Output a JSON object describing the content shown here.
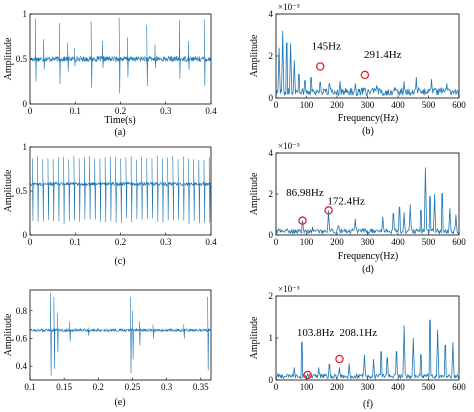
{
  "figure": {
    "panels": [
      {
        "id": "a",
        "caption": "(a)",
        "side": "time"
      },
      {
        "id": "b",
        "caption": "(b)",
        "side": "freq"
      },
      {
        "id": "c",
        "caption": "(c)",
        "side": "time"
      },
      {
        "id": "d",
        "caption": "(d)",
        "side": "freq"
      },
      {
        "id": "e",
        "caption": "(e)",
        "side": "time"
      },
      {
        "id": "f",
        "caption": "(f)",
        "side": "freq"
      }
    ]
  },
  "chart_data": [
    {
      "panel": "a",
      "type": "line",
      "color": "#1f77b4",
      "xlabel": "Time(s)",
      "ylabel": "Amplitude",
      "xlim": [
        0,
        0.4
      ],
      "ylim": [
        0,
        1
      ],
      "xticks": [
        "0",
        "0.1",
        "0.2",
        "0.3",
        "0.4"
      ],
      "xtick_values": [
        0,
        0.1,
        0.2,
        0.3,
        0.4
      ],
      "yticks": [
        "0",
        "0.5",
        "1"
      ],
      "ytick_values": [
        0,
        0.5,
        1
      ],
      "baseline": 0.5,
      "noise": 0.03,
      "spikes": [
        {
          "x": 0.012,
          "up": 0.95,
          "down": 0.25
        },
        {
          "x": 0.03,
          "up": 0.72,
          "down": 0.38
        },
        {
          "x": 0.065,
          "up": 0.9,
          "down": 0.22
        },
        {
          "x": 0.083,
          "up": 0.68,
          "down": 0.36
        },
        {
          "x": 0.098,
          "up": 0.62,
          "down": 0.42
        },
        {
          "x": 0.135,
          "up": 0.92,
          "down": 0.18
        },
        {
          "x": 0.16,
          "up": 0.7,
          "down": 0.4
        },
        {
          "x": 0.197,
          "up": 0.96,
          "down": 0.12
        },
        {
          "x": 0.215,
          "up": 0.74,
          "down": 0.3
        },
        {
          "x": 0.258,
          "up": 0.88,
          "down": 0.2
        },
        {
          "x": 0.276,
          "up": 0.66,
          "down": 0.4
        },
        {
          "x": 0.33,
          "up": 0.93,
          "down": 0.28
        },
        {
          "x": 0.35,
          "up": 0.7,
          "down": 0.38
        },
        {
          "x": 0.385,
          "up": 0.94,
          "down": 0.2
        }
      ]
    },
    {
      "panel": "b",
      "type": "line",
      "color": "#1f77b4",
      "xlabel": "Frequency(Hz)",
      "ylabel": "Amplitude",
      "scale_label": "×10⁻³",
      "xlim": [
        0,
        600
      ],
      "ylim": [
        0,
        4
      ],
      "xticks": [
        "0",
        "100",
        "200",
        "300",
        "400",
        "500",
        "600"
      ],
      "xtick_values": [
        0,
        100,
        200,
        300,
        400,
        500,
        600
      ],
      "yticks": [
        "0",
        "2",
        "4"
      ],
      "ytick_values": [
        0,
        2,
        4
      ],
      "noise_level": 0.4,
      "peaks": [
        {
          "x": 10,
          "y": 2.4
        },
        {
          "x": 22,
          "y": 3.2
        },
        {
          "x": 35,
          "y": 3.5
        },
        {
          "x": 48,
          "y": 2.6
        },
        {
          "x": 60,
          "y": 1.8
        },
        {
          "x": 75,
          "y": 1.5
        },
        {
          "x": 95,
          "y": 1.1
        },
        {
          "x": 115,
          "y": 1.3
        },
        {
          "x": 145,
          "y": 1.0
        },
        {
          "x": 175,
          "y": 0.9
        },
        {
          "x": 210,
          "y": 0.8
        },
        {
          "x": 260,
          "y": 0.7
        },
        {
          "x": 291,
          "y": 0.5
        },
        {
          "x": 330,
          "y": 0.6
        },
        {
          "x": 420,
          "y": 0.8
        },
        {
          "x": 460,
          "y": 1.0
        },
        {
          "x": 510,
          "y": 0.9
        },
        {
          "x": 560,
          "y": 0.7
        }
      ],
      "markers": [
        {
          "x": 145,
          "y": 1.5
        },
        {
          "x": 291.4,
          "y": 1.1
        }
      ],
      "annotations": [
        {
          "text": "145Hz",
          "x": 165,
          "y": 2.3
        },
        {
          "text": "291.4Hz",
          "x": 350,
          "y": 1.9
        }
      ]
    },
    {
      "panel": "c",
      "type": "line",
      "color": "#1f77b4",
      "xlabel": "",
      "ylabel": "Amplitude",
      "xlim": [
        0,
        0.4
      ],
      "ylim": [
        0,
        1
      ],
      "xticks": [
        "0",
        "0.1",
        "0.2",
        "0.3",
        "0.4"
      ],
      "xtick_values": [
        0,
        0.1,
        0.2,
        0.3,
        0.4
      ],
      "yticks": [
        "0",
        "0.5",
        "1"
      ],
      "ytick_values": [
        0,
        0.5,
        1
      ],
      "baseline": 0.58,
      "noise": 0.02,
      "spike_period": 0.0115,
      "spike_start": 0.005,
      "spike_up": 0.9,
      "spike_down": 0.12
    },
    {
      "panel": "d",
      "type": "line",
      "color": "#1f77b4",
      "xlabel": "Frequency(Hz)",
      "ylabel": "Amplitude",
      "scale_label": "×10⁻³",
      "xlim": [
        0,
        600
      ],
      "ylim": [
        0,
        4
      ],
      "xticks": [
        "0",
        "100",
        "200",
        "300",
        "400",
        "500",
        "600"
      ],
      "xtick_values": [
        0,
        100,
        200,
        300,
        400,
        500,
        600
      ],
      "yticks": [
        "0",
        "2",
        "4"
      ],
      "ytick_values": [
        0,
        2,
        4
      ],
      "noise_level": 0.25,
      "peaks": [
        {
          "x": 87,
          "y": 0.9
        },
        {
          "x": 120,
          "y": 0.4
        },
        {
          "x": 172,
          "y": 1.2
        },
        {
          "x": 205,
          "y": 0.6
        },
        {
          "x": 260,
          "y": 0.8
        },
        {
          "x": 350,
          "y": 0.9
        },
        {
          "x": 385,
          "y": 1.4
        },
        {
          "x": 405,
          "y": 1.8
        },
        {
          "x": 420,
          "y": 1.1
        },
        {
          "x": 440,
          "y": 1.5
        },
        {
          "x": 475,
          "y": 1.6
        },
        {
          "x": 490,
          "y": 3.3
        },
        {
          "x": 505,
          "y": 2.5
        },
        {
          "x": 520,
          "y": 2.0
        },
        {
          "x": 545,
          "y": 2.7
        },
        {
          "x": 570,
          "y": 1.3
        },
        {
          "x": 590,
          "y": 1.0
        }
      ],
      "markers": [
        {
          "x": 86.98,
          "y": 0.7
        },
        {
          "x": 172.4,
          "y": 1.2
        }
      ],
      "annotations": [
        {
          "text": "86.98Hz",
          "x": 95,
          "y": 1.9
        },
        {
          "text": "172.4Hz",
          "x": 230,
          "y": 1.5
        }
      ]
    },
    {
      "panel": "e",
      "type": "line",
      "color": "#1f77b4",
      "xlabel": "",
      "ylabel": "Amplitude",
      "xlim": [
        0.1,
        0.365
      ],
      "ylim": [
        0.3,
        0.95
      ],
      "xticks": [
        "0.1",
        "0.15",
        "0.2",
        "0.25",
        "0.3",
        "0.35"
      ],
      "xtick_values": [
        0.1,
        0.15,
        0.2,
        0.25,
        0.3,
        0.35
      ],
      "yticks": [
        "0.4",
        "0.6",
        "0.8"
      ],
      "ytick_values": [
        0.4,
        0.6,
        0.8
      ],
      "baseline": 0.66,
      "noise": 0.01,
      "spikes": [
        {
          "x": 0.13,
          "up": 0.93,
          "down": 0.33
        },
        {
          "x": 0.135,
          "up": 0.9,
          "down": 0.38
        },
        {
          "x": 0.14,
          "up": 0.78,
          "down": 0.5
        },
        {
          "x": 0.158,
          "up": 0.72,
          "down": 0.58
        },
        {
          "x": 0.185,
          "up": 0.68,
          "down": 0.62
        },
        {
          "x": 0.247,
          "up": 0.9,
          "down": 0.35
        },
        {
          "x": 0.25,
          "up": 0.8,
          "down": 0.45
        },
        {
          "x": 0.26,
          "up": 0.72,
          "down": 0.55
        },
        {
          "x": 0.28,
          "up": 0.7,
          "down": 0.6
        },
        {
          "x": 0.325,
          "up": 0.7,
          "down": 0.6
        },
        {
          "x": 0.36,
          "up": 0.9,
          "down": 0.37
        }
      ]
    },
    {
      "panel": "f",
      "type": "line",
      "color": "#1f77b4",
      "xlabel": "Frequency(Hz)",
      "ylabel": "Amplitude",
      "scale_label": "×10⁻³",
      "xlim": [
        0,
        600
      ],
      "ylim": [
        0,
        2
      ],
      "xticks": [
        "0",
        "100",
        "200",
        "300",
        "400",
        "500",
        "600"
      ],
      "xtick_values": [
        0,
        100,
        200,
        300,
        400,
        500,
        600
      ],
      "yticks": [
        "0",
        "1",
        "2"
      ],
      "ytick_values": [
        0,
        1,
        2
      ],
      "noise_level": 0.12,
      "peaks": [
        {
          "x": 60,
          "y": 0.3
        },
        {
          "x": 85,
          "y": 1.2
        },
        {
          "x": 104,
          "y": 0.15
        },
        {
          "x": 140,
          "y": 0.3
        },
        {
          "x": 175,
          "y": 0.5
        },
        {
          "x": 208,
          "y": 0.3
        },
        {
          "x": 240,
          "y": 0.4
        },
        {
          "x": 290,
          "y": 0.6
        },
        {
          "x": 320,
          "y": 0.5
        },
        {
          "x": 345,
          "y": 0.9
        },
        {
          "x": 365,
          "y": 0.7
        },
        {
          "x": 395,
          "y": 0.9
        },
        {
          "x": 420,
          "y": 1.3
        },
        {
          "x": 450,
          "y": 1.0
        },
        {
          "x": 475,
          "y": 0.8
        },
        {
          "x": 505,
          "y": 1.9
        },
        {
          "x": 530,
          "y": 1.2
        },
        {
          "x": 555,
          "y": 1.1
        },
        {
          "x": 580,
          "y": 0.9
        }
      ],
      "markers": [
        {
          "x": 103.8,
          "y": 0.12
        },
        {
          "x": 208.1,
          "y": 0.5
        }
      ],
      "annotations": [
        {
          "text": "103.8Hz",
          "x": 130,
          "y": 1.05
        },
        {
          "text": "208.1Hz",
          "x": 270,
          "y": 1.05
        }
      ]
    }
  ]
}
